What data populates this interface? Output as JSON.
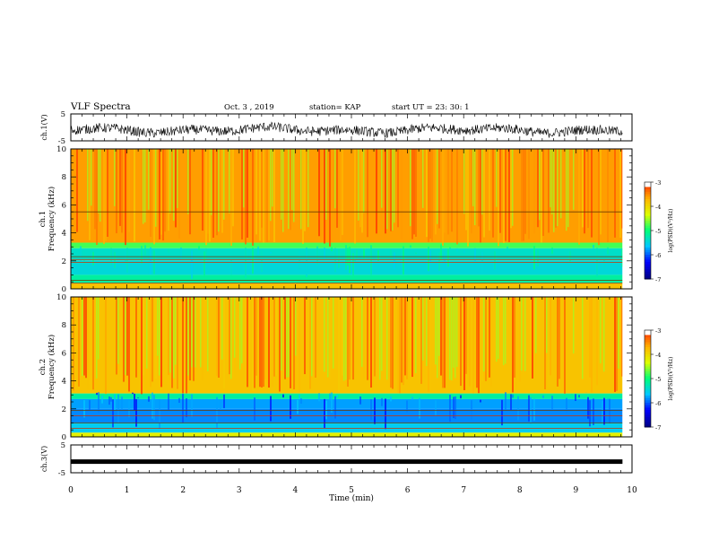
{
  "header": {
    "title": "VLF Spectra",
    "date": "Oct. 3 , 2019",
    "station": "station= KAP",
    "start": "start UT = 23: 30: 1"
  },
  "chart_data": [
    {
      "type": "line",
      "panel": "waveform-ch1",
      "ylabel": "ch.1(V)",
      "ylim": [
        -5,
        5
      ],
      "y_tick_labels": [
        "5",
        "-5"
      ],
      "xlim": [
        0,
        10
      ],
      "x_data_end": 9.83,
      "series_description": "noisy waveform around about -1 V"
    },
    {
      "type": "heatmap",
      "panel": "spectrogram-ch1",
      "ylabel": "ch.1\nFrequency (kHz)",
      "ylim": [
        0,
        10
      ],
      "y_ticks": [
        0,
        2,
        4,
        6,
        8,
        10
      ],
      "xlim": [
        0,
        10
      ],
      "x_data_end": 9.83,
      "colorbar": {
        "label": "log(PSD)(V²/Hz)",
        "range": [
          -7,
          -3
        ],
        "ticks": [
          "-3",
          "-4",
          "-5",
          "-6",
          "-7"
        ]
      },
      "horizontal_lines_khz": [
        5.5,
        2.1,
        2.3,
        1.9,
        0.6,
        0.4
      ]
    },
    {
      "type": "heatmap",
      "panel": "spectrogram-ch2",
      "ylabel": "ch.2\nFrequency (kHz)",
      "ylim": [
        0,
        10
      ],
      "y_ticks": [
        0,
        2,
        4,
        6,
        8,
        10
      ],
      "xlim": [
        0,
        10
      ],
      "x_data_end": 9.83,
      "colorbar": {
        "label": "log(PSD)(V²/Hz)",
        "range": [
          -7,
          -3
        ],
        "ticks": [
          "-3",
          "-4",
          "-5",
          "-6",
          "-7"
        ]
      },
      "horizontal_lines_khz": [
        1.9,
        1.5,
        1.0,
        0.6
      ]
    },
    {
      "type": "line",
      "panel": "waveform-ch3",
      "ylabel": "ch.3(V)",
      "ylim": [
        -5,
        5
      ],
      "y_tick_labels": [
        "5",
        "-5"
      ],
      "xlim": [
        0,
        10
      ],
      "x_data_end": 9.83,
      "series_description": "flat trace near -1 V"
    }
  ],
  "x_axis": {
    "label": "Time (min)",
    "ticks": [
      "0",
      "1",
      "2",
      "3",
      "4",
      "5",
      "6",
      "7",
      "8",
      "9",
      "10"
    ]
  }
}
